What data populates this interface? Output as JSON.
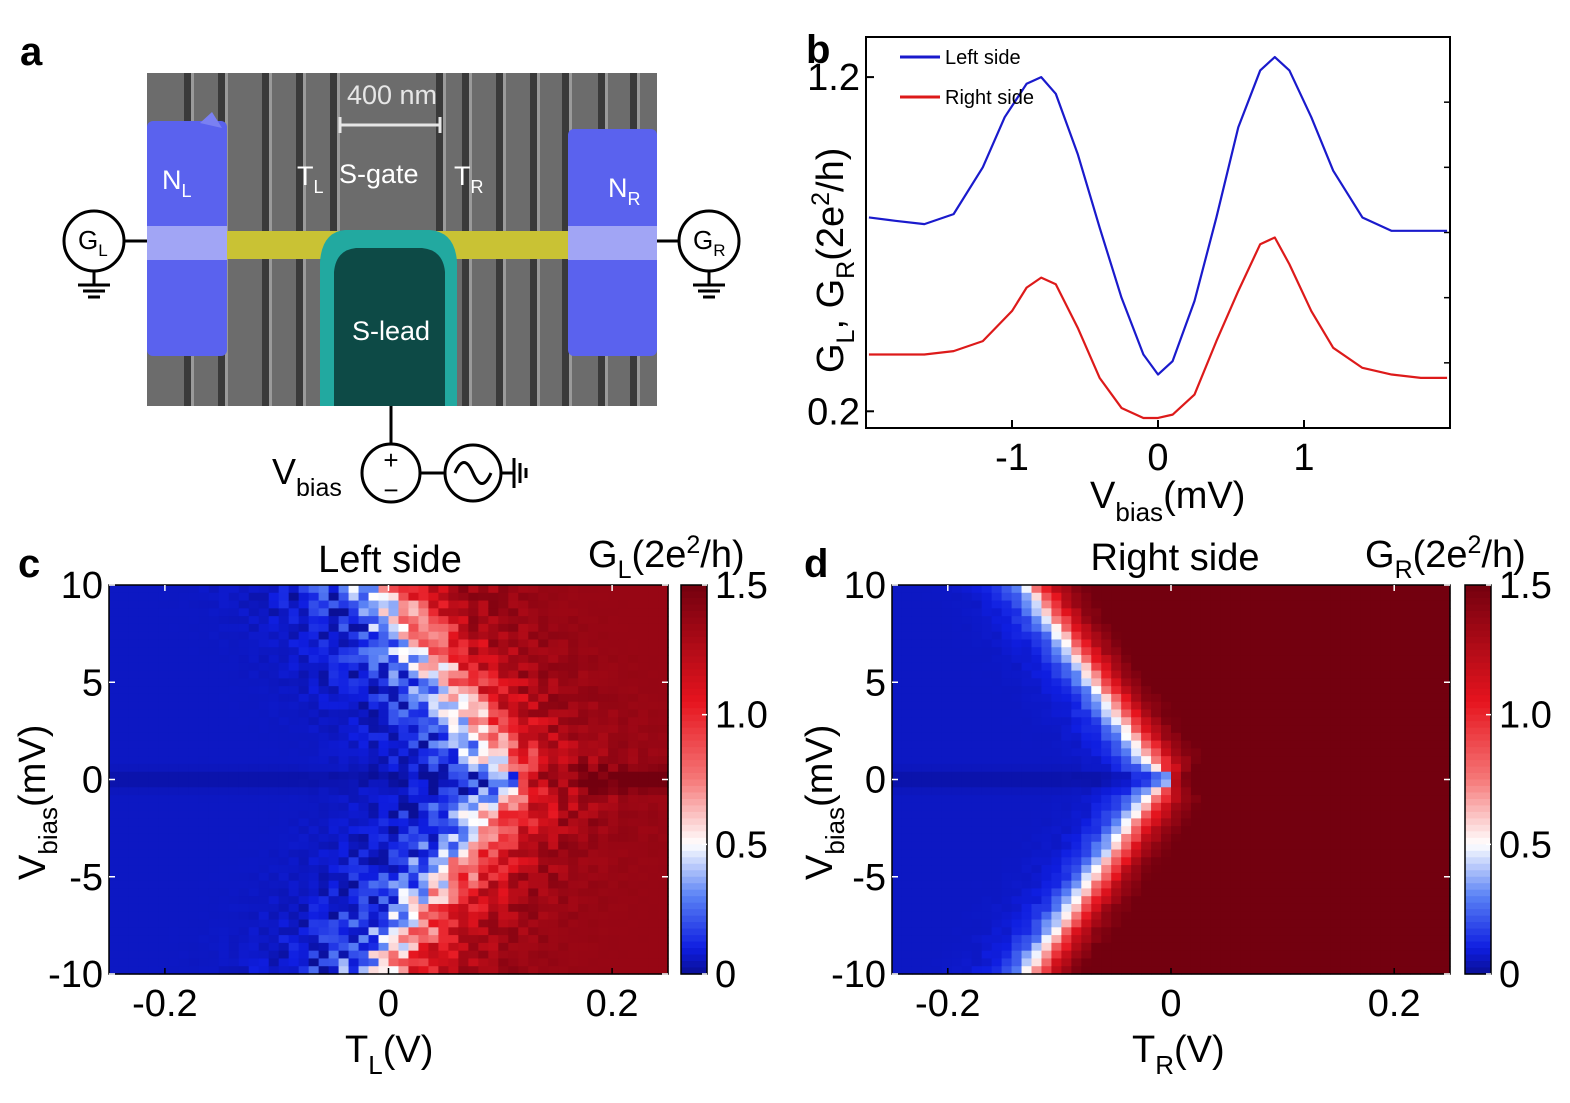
{
  "panels": {
    "a": {
      "label": "a",
      "scale_bar": "400 nm",
      "labels": {
        "NL": "N",
        "NL_sub": "L",
        "NR": "N",
        "NR_sub": "R",
        "TL": "T",
        "TL_sub": "L",
        "TR": "T",
        "TR_sub": "R",
        "sgate": "S-gate",
        "slead": "S-lead",
        "GL": "G",
        "GL_sub": "L",
        "GR": "G",
        "GR_sub": "R",
        "vbias": "V",
        "vbias_sub": "bias",
        "plus": "+",
        "minus": "−"
      },
      "colors": {
        "normal_lead": "#5a62ee",
        "nanowire": "#c9c234",
        "super_lead": "#22a9a0",
        "sem_bg": "#6c6c6c"
      }
    },
    "b": {
      "label": "b",
      "ylabel_parts": [
        "G",
        "L",
        ", G",
        "R",
        "(2e",
        "2",
        "/h)"
      ],
      "xlabel": "V",
      "xlabel_sub": "bias",
      "xlabel_unit": "(mV)"
    },
    "c": {
      "label": "c",
      "title": "Left side",
      "cbar_label": [
        "G",
        "L",
        "(2e",
        "2",
        "/h)"
      ],
      "ylabel": "V",
      "ylabel_sub": "bias",
      "ylabel_unit": "(mV)",
      "xlabel": "T",
      "xlabel_sub": "L",
      "xlabel_unit": "(V)"
    },
    "d": {
      "label": "d",
      "title": "Right side",
      "cbar_label": [
        "G",
        "R",
        "(2e",
        "2",
        "/h)"
      ],
      "ylabel": "V",
      "ylabel_sub": "bias",
      "ylabel_unit": "(mV)",
      "xlabel": "T",
      "xlabel_sub": "R",
      "xlabel_unit": "(V)"
    }
  },
  "chart_data": [
    {
      "panel": "b",
      "type": "line",
      "xlabel": "Vbias(mV)",
      "ylabel": "GL, GR(2e2/h)",
      "xlim": [
        -2,
        2
      ],
      "ylim": [
        0.15,
        1.32
      ],
      "xticks": [
        -1,
        0,
        1
      ],
      "yticks": [
        0.2,
        1.2
      ],
      "legend_position": "top-left",
      "series": [
        {
          "name": "Left side",
          "color": "#1a1acc",
          "x": [
            -1.98,
            -1.8,
            -1.6,
            -1.4,
            -1.2,
            -1.05,
            -0.9,
            -0.8,
            -0.7,
            -0.55,
            -0.4,
            -0.25,
            -0.1,
            0.0,
            0.1,
            0.25,
            0.4,
            0.55,
            0.7,
            0.8,
            0.9,
            1.05,
            1.2,
            1.4,
            1.6,
            1.8,
            1.98
          ],
          "values": [
            0.78,
            0.77,
            0.76,
            0.79,
            0.93,
            1.08,
            1.18,
            1.2,
            1.15,
            0.97,
            0.75,
            0.54,
            0.37,
            0.31,
            0.35,
            0.53,
            0.78,
            1.05,
            1.22,
            1.26,
            1.22,
            1.08,
            0.92,
            0.78,
            0.74,
            0.74,
            0.74
          ]
        },
        {
          "name": "Right side",
          "color": "#dd1a1a",
          "x": [
            -1.98,
            -1.8,
            -1.6,
            -1.4,
            -1.2,
            -1.0,
            -0.9,
            -0.8,
            -0.7,
            -0.55,
            -0.4,
            -0.25,
            -0.1,
            0.0,
            0.1,
            0.25,
            0.4,
            0.55,
            0.7,
            0.8,
            0.9,
            1.05,
            1.2,
            1.4,
            1.6,
            1.8,
            1.98
          ],
          "values": [
            0.37,
            0.37,
            0.37,
            0.38,
            0.41,
            0.5,
            0.57,
            0.6,
            0.58,
            0.45,
            0.3,
            0.21,
            0.18,
            0.18,
            0.19,
            0.25,
            0.41,
            0.56,
            0.7,
            0.72,
            0.64,
            0.5,
            0.39,
            0.33,
            0.31,
            0.3,
            0.3
          ]
        }
      ]
    },
    {
      "panel": "c",
      "type": "heatmap",
      "title": "Left side",
      "xlabel": "TL(V)",
      "ylabel": "Vbias(mV)",
      "colorbar_label": "GL(2e2/h)",
      "xlim": [
        -0.25,
        0.25
      ],
      "ylim": [
        -10,
        10
      ],
      "xticks": [
        -0.2,
        0,
        0.2
      ],
      "yticks": [
        10,
        5,
        0,
        -5,
        -10
      ],
      "clim": [
        0,
        1.5
      ],
      "cticks": [
        0,
        0.5,
        1.0,
        1.5
      ],
      "model": {
        "transition_center": 0.12,
        "transition_width": 0.07,
        "max_g": 1.3,
        "zero_bias_dip": true,
        "noise": 0.25
      }
    },
    {
      "panel": "d",
      "type": "heatmap",
      "title": "Right side",
      "xlabel": "TR(V)",
      "ylabel": "Vbias(mV)",
      "colorbar_label": "GR(2e2/h)",
      "xlim": [
        -0.25,
        0.25
      ],
      "ylim": [
        -10,
        10
      ],
      "xticks": [
        -0.2,
        0,
        0.2
      ],
      "yticks": [
        10,
        5,
        0,
        -5,
        -10
      ],
      "clim": [
        0,
        1.5
      ],
      "cticks": [
        0,
        0.5,
        1.0,
        1.5
      ],
      "model": {
        "transition_center": 0.0,
        "transition_width": 0.04,
        "max_g": 1.5,
        "zero_bias_dip": true,
        "noise": 0.05
      }
    }
  ]
}
